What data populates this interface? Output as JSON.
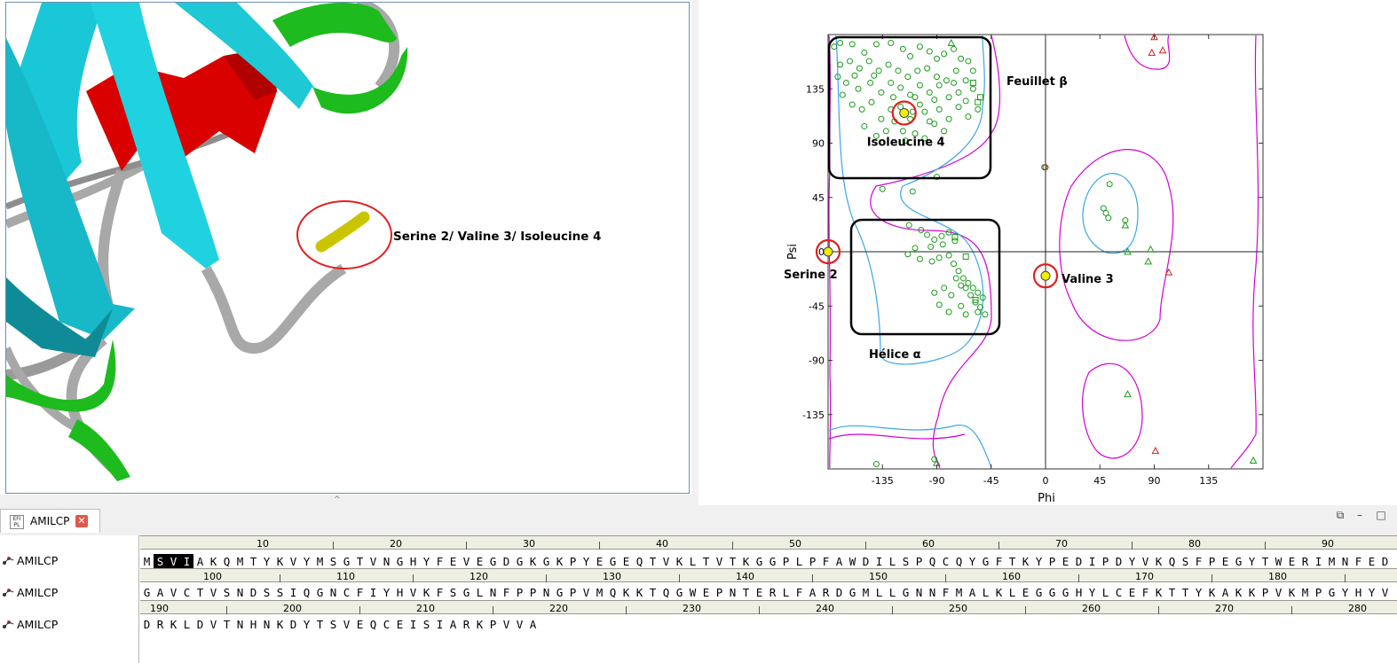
{
  "viewer3d": {
    "label": "Serine 2/ Valine 3/ Isoleucine 4",
    "colors": {
      "strand": "#1ec8d4",
      "helix": "#e00000",
      "turn": "#1dbb1d",
      "coil": "#a8a8a8",
      "selected": "#dada00"
    }
  },
  "chart_data": {
    "type": "scatter",
    "xlabel": "Phi",
    "ylabel": "Psi",
    "xlim": [
      -180,
      180
    ],
    "ylim": [
      -180,
      180
    ],
    "xticks": [
      -135,
      -90,
      -45,
      0,
      45,
      90,
      135
    ],
    "yticks": [
      135,
      90,
      45,
      0,
      -45,
      -90,
      -135
    ],
    "region_labels": {
      "beta": "Feuillet β",
      "alpha": "Hélice α"
    },
    "highlights": [
      {
        "name": "Serine 2",
        "phi": -180,
        "psi": 0
      },
      {
        "name": "Valine 3",
        "phi": 0,
        "psi": -20
      },
      {
        "name": "Isoleucine 4",
        "phi": -117,
        "psi": 115
      }
    ],
    "series": [
      {
        "marker": "circle",
        "points": [
          [
            -175,
            170
          ],
          [
            -170,
            173
          ],
          [
            -160,
            172
          ],
          [
            -150,
            165
          ],
          [
            -140,
            172
          ],
          [
            -128,
            173
          ],
          [
            -118,
            168
          ],
          [
            -112,
            162
          ],
          [
            -104,
            170
          ],
          [
            -96,
            166
          ],
          [
            -90,
            160
          ],
          [
            -84,
            164
          ],
          [
            -76,
            168
          ],
          [
            -70,
            160
          ],
          [
            -64,
            158
          ],
          [
            -60,
            150
          ],
          [
            -66,
            142
          ],
          [
            -74,
            150
          ],
          [
            -82,
            142
          ],
          [
            -90,
            145
          ],
          [
            -98,
            152
          ],
          [
            -106,
            150
          ],
          [
            -114,
            145
          ],
          [
            -122,
            150
          ],
          [
            -130,
            155
          ],
          [
            -138,
            150
          ],
          [
            -146,
            158
          ],
          [
            -154,
            152
          ],
          [
            -162,
            158
          ],
          [
            -170,
            155
          ],
          [
            -165,
            140
          ],
          [
            -155,
            135
          ],
          [
            -145,
            140
          ],
          [
            -136,
            132
          ],
          [
            -128,
            140
          ],
          [
            -120,
            136
          ],
          [
            -112,
            130
          ],
          [
            -104,
            138
          ],
          [
            -96,
            132
          ],
          [
            -88,
            138
          ],
          [
            -80,
            128
          ],
          [
            -72,
            132
          ],
          [
            -66,
            125
          ],
          [
            -60,
            135
          ],
          [
            -56,
            118
          ],
          [
            -64,
            112
          ],
          [
            -72,
            120
          ],
          [
            -80,
            110
          ],
          [
            -88,
            118
          ],
          [
            -96,
            108
          ],
          [
            -104,
            122
          ],
          [
            -112,
            110
          ],
          [
            -120,
            120
          ],
          [
            -128,
            118
          ],
          [
            -136,
            110
          ],
          [
            -144,
            124
          ],
          [
            -152,
            118
          ],
          [
            -160,
            122
          ],
          [
            -168,
            130
          ],
          [
            -172,
            145
          ],
          [
            -158,
            146
          ],
          [
            -142,
            146
          ],
          [
            -126,
            128
          ],
          [
            -108,
            128
          ],
          [
            -92,
            126
          ],
          [
            -76,
            140
          ],
          [
            -118,
            100
          ],
          [
            -108,
            98
          ],
          [
            -100,
            94
          ],
          [
            -92,
            106
          ],
          [
            -84,
            100
          ],
          [
            -116,
            92
          ],
          [
            -132,
            100
          ],
          [
            -150,
            104
          ],
          [
            -140,
            96
          ],
          [
            -125,
            108
          ],
          [
            -110,
            116
          ],
          [
            -100,
            116
          ],
          [
            -90,
            62
          ],
          [
            -135,
            52
          ],
          [
            -110,
            50
          ],
          [
            -113,
            22
          ],
          [
            -103,
            18
          ],
          [
            -98,
            14
          ],
          [
            -92,
            10
          ],
          [
            -86,
            13
          ],
          [
            -80,
            16
          ],
          [
            -75,
            9
          ],
          [
            -85,
            6
          ],
          [
            -95,
            4
          ],
          [
            -108,
            3
          ],
          [
            -114,
            -2
          ],
          [
            -104,
            -6
          ],
          [
            -94,
            -8
          ],
          [
            -88,
            -5
          ],
          [
            -80,
            -3
          ],
          [
            -76,
            -10
          ],
          [
            -72,
            -16
          ],
          [
            -68,
            -22
          ],
          [
            -64,
            -26
          ],
          [
            -60,
            -30
          ],
          [
            -56,
            -34
          ],
          [
            -52,
            -38
          ],
          [
            -66,
            -30
          ],
          [
            -62,
            -36
          ],
          [
            -58,
            -42
          ],
          [
            -54,
            -46
          ],
          [
            -74,
            -22
          ],
          [
            -70,
            -28
          ],
          [
            -50,
            -52
          ],
          [
            -56,
            -50
          ],
          [
            -70,
            -45
          ],
          [
            -80,
            -50
          ],
          [
            -88,
            -44
          ],
          [
            -84,
            -30
          ],
          [
            -78,
            -36
          ],
          [
            -92,
            -34
          ],
          [
            -66,
            -52
          ],
          [
            53,
            56
          ],
          [
            48,
            36
          ],
          [
            50,
            32
          ],
          [
            52,
            28
          ],
          [
            66,
            26
          ],
          [
            -140,
            -176
          ],
          [
            -92,
            -172
          ],
          [
            -1,
            70
          ],
          [
            -1,
            -20
          ],
          [
            -180,
            0
          ]
        ]
      },
      {
        "marker": "triangle",
        "points": [
          [
            -78,
            173
          ],
          [
            66,
            22
          ],
          [
            68,
            0
          ],
          [
            87,
            2
          ],
          [
            85,
            -8
          ],
          [
            -90,
            -175
          ],
          [
            68,
            -118
          ],
          [
            172,
            -173
          ]
        ]
      },
      {
        "marker": "square",
        "points": [
          [
            -60,
            140
          ],
          [
            -56,
            124
          ],
          [
            -54,
            128
          ],
          [
            -75,
            12
          ],
          [
            -66,
            -4
          ],
          [
            -58,
            -40
          ]
        ]
      },
      {
        "marker": "triangle-red",
        "points": [
          [
            90,
            178
          ],
          [
            88,
            165
          ],
          [
            97,
            167
          ],
          [
            102,
            -17
          ],
          [
            91,
            -165
          ]
        ]
      },
      {
        "marker": "circle-red",
        "points": [
          [
            0,
            70
          ]
        ]
      }
    ]
  },
  "tab": {
    "icon_text": "EFI\nPL",
    "label": "AMILCP"
  },
  "window_buttons": {
    "restore": "⧉",
    "minimize": "–",
    "maximize": "□"
  },
  "sequences": {
    "names": [
      "AMILCP",
      "AMILCP",
      "AMILCP"
    ],
    "lines": [
      "MSVIAKQMTYKVYMSGTVNGHYFEVEGDGKGKPYEGEQTVKLTVTKGGPLPFAWDILSPQCQYGFTKYPEDIPDYVKQSFPEGYTWERIMNFED",
      "GAVCTVSNDSSIQGNCFIYHVKFSGLNFPPNGPVMQKKTQGWEPNTERLFARDGMLLGNNFMALKLEGGGHYLCEFKTTYKAKKPVKMPGYHYV",
      "DRKLDVTNHNKDYTSVEQCEISIARKPVVA"
    ],
    "selected": [
      1,
      2,
      3
    ],
    "rulers": [
      {
        "start": 1,
        "labels": [
          10,
          20,
          30,
          40,
          50,
          60,
          70,
          80,
          90
        ]
      },
      {
        "start": 95,
        "labels": [
          100,
          110,
          120,
          130,
          140,
          150,
          160,
          170,
          180
        ]
      },
      {
        "start": 189,
        "labels": [
          190,
          200,
          210,
          220,
          230,
          240,
          250,
          260,
          270,
          280
        ]
      }
    ]
  }
}
